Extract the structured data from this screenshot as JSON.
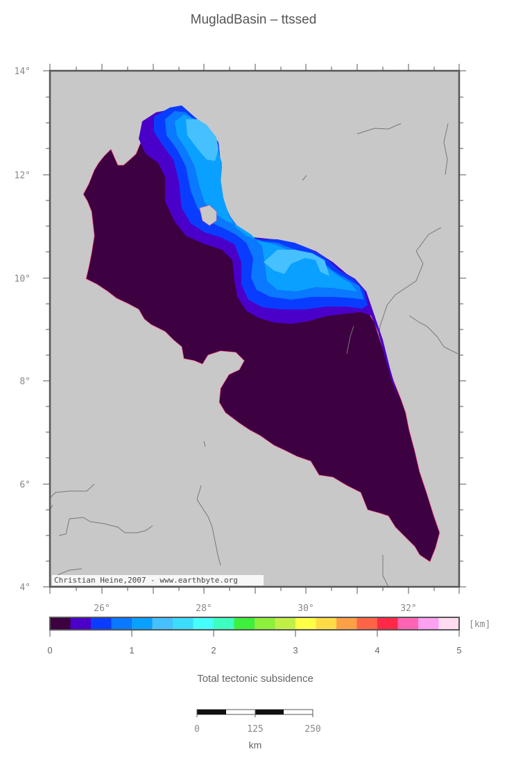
{
  "title": "MugladBasin – ttssed",
  "credit": "Christian Heine,2007 - www.earthbyte.org",
  "map": {
    "background": "#c8c8c8",
    "basin_base_color": "#3d0040",
    "lat_ticks": [
      "14°",
      "12°",
      "10°",
      "8°",
      "6°",
      "4°"
    ],
    "lon_ticks": [
      "26°",
      "28°",
      "30°",
      "32°"
    ]
  },
  "colorbar": {
    "unit": "[km]",
    "title": "Total tectonic subsidence",
    "ticks": [
      "0",
      "1",
      "2",
      "3",
      "4",
      "5"
    ],
    "colors": [
      "#3d0040",
      "#4a00c8",
      "#0a3cff",
      "#0a78ff",
      "#0aa0ff",
      "#46c0ff",
      "#3cdcff",
      "#46ffff",
      "#3cffc0",
      "#3cf03c",
      "#8cf03c",
      "#c0f046",
      "#ffff46",
      "#ffdc46",
      "#ffa046",
      "#ff6446",
      "#ff2846",
      "#ff64b4",
      "#ffa0f0",
      "#ffdcf0"
    ]
  },
  "scalebar": {
    "ticks": [
      "0",
      "125",
      "250"
    ],
    "unit": "km"
  }
}
